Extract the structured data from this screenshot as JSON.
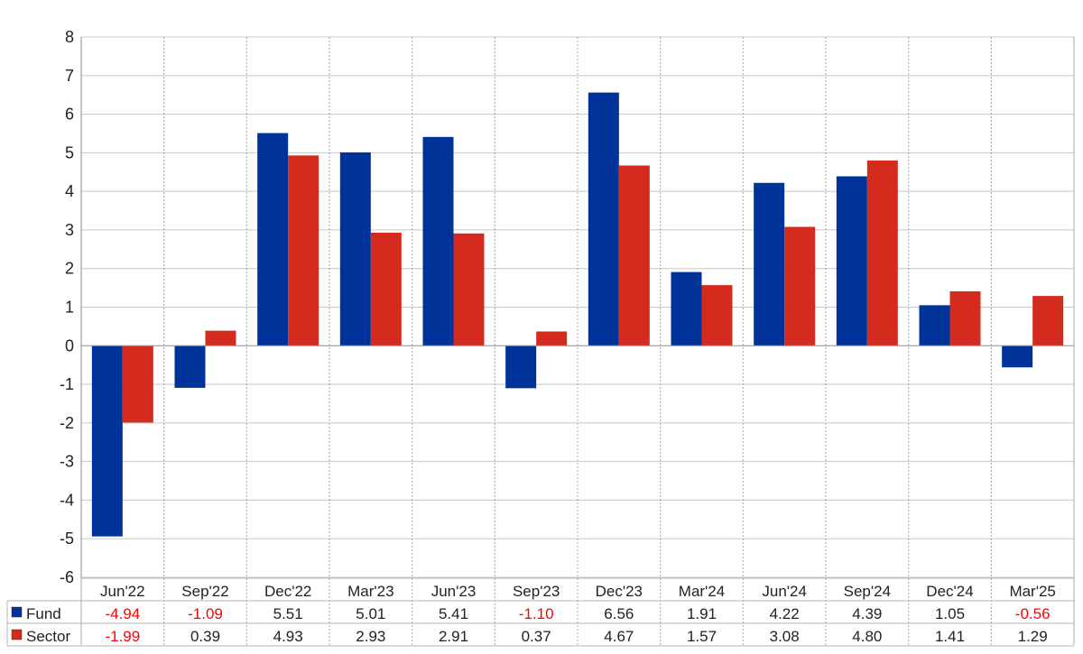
{
  "chart_data": {
    "type": "bar",
    "categories": [
      "Jun'22",
      "Sep'22",
      "Dec'22",
      "Mar'23",
      "Jun'23",
      "Sep'23",
      "Dec'23",
      "Mar'24",
      "Jun'24",
      "Sep'24",
      "Dec'24",
      "Mar'25"
    ],
    "series": [
      {
        "name": "Fund",
        "color": "#003399",
        "values": [
          -4.94,
          -1.09,
          5.51,
          5.01,
          5.41,
          -1.1,
          6.56,
          1.91,
          4.22,
          4.39,
          1.05,
          -0.56
        ],
        "value_labels": [
          "-4.94",
          "-1.09",
          "5.51",
          "5.01",
          "5.41",
          "-1.10",
          "6.56",
          "1.91",
          "4.22",
          "4.39",
          "1.05",
          "-0.56"
        ]
      },
      {
        "name": "Sector",
        "color": "#d52b1e",
        "values": [
          -1.99,
          0.39,
          4.93,
          2.93,
          2.91,
          0.37,
          4.67,
          1.57,
          3.08,
          4.8,
          1.41,
          1.29
        ],
        "value_labels": [
          "-1.99",
          "0.39",
          "4.93",
          "2.93",
          "2.91",
          "0.37",
          "4.67",
          "1.57",
          "3.08",
          "4.80",
          "1.41",
          "1.29"
        ]
      }
    ],
    "title": "",
    "xlabel": "",
    "ylabel": "",
    "ylim": [
      -6,
      8
    ],
    "yticks": [
      "-6",
      "-5",
      "-4",
      "-3",
      "-2",
      "-1",
      "0",
      "1",
      "2",
      "3",
      "4",
      "5",
      "6",
      "7",
      "8"
    ],
    "grid": true,
    "legend": "data-table-bottom",
    "negative_label_color": "#ff0000"
  }
}
